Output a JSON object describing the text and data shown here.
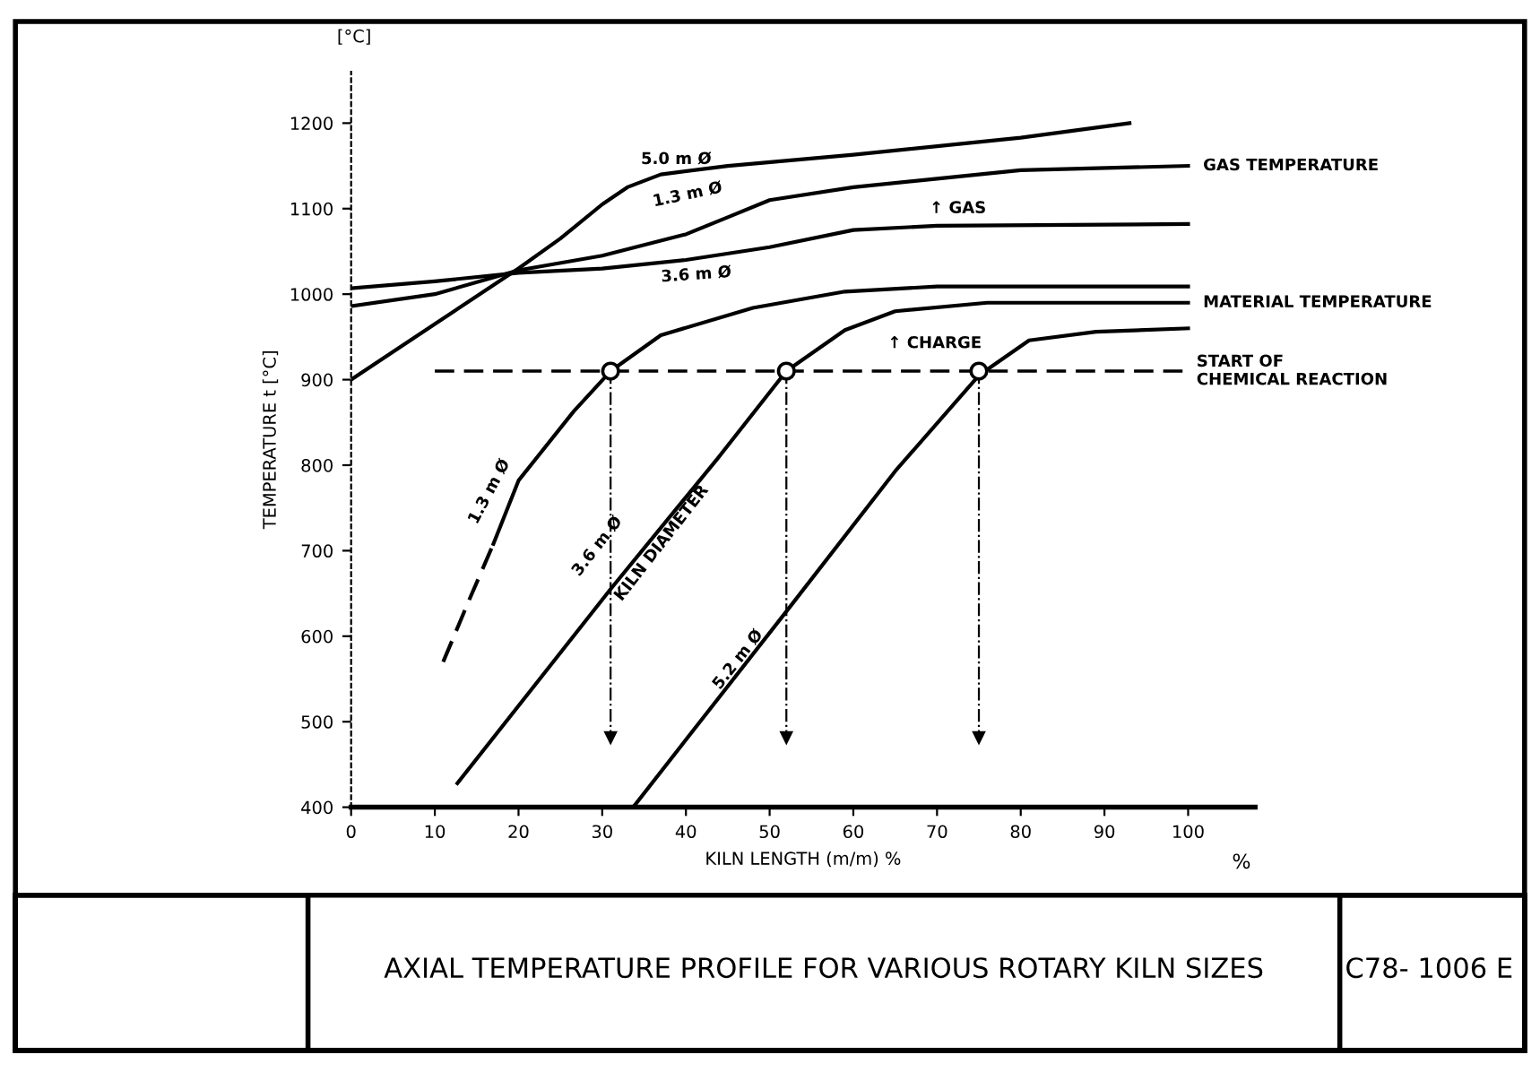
{
  "chart_data": {
    "type": "line",
    "title": "AXIAL TEMPERATURE PROFILE FOR VARIOUS ROTARY KILN SIZES",
    "xlabel": "KILN LENGTH (m/m) %",
    "ylabel": "TEMPERATURE t [°C]",
    "xlim": [
      0,
      108
    ],
    "ylim": [
      400,
      1260
    ],
    "xticks": [
      0,
      10,
      20,
      30,
      40,
      50,
      60,
      70,
      80,
      90,
      100
    ],
    "yticks": [
      400,
      500,
      600,
      700,
      800,
      900,
      1000,
      1100,
      1200
    ],
    "grid": false,
    "marker": "none",
    "line_style": "solid",
    "series": [
      {
        "color": "#000000",
        "x": [
          0,
          10,
          20,
          25,
          30,
          33,
          37,
          45,
          60,
          80,
          93
        ],
        "values": [
          900,
          965,
          1030,
          1065,
          1105,
          1125,
          1140,
          1150,
          1163,
          1183,
          1200
        ]
      },
      {
        "color": "#000000",
        "x": [
          0,
          10,
          20,
          30,
          40,
          45,
          50,
          60,
          70,
          80,
          100
        ],
        "values": [
          986,
          1000,
          1028,
          1045,
          1070,
          1090,
          1110,
          1125,
          1135,
          1145,
          1150
        ]
      },
      {
        "color": "#000000",
        "x": [
          0,
          10,
          20,
          30,
          40,
          50,
          60,
          70,
          100
        ],
        "values": [
          1007,
          1015,
          1025,
          1030,
          1040,
          1055,
          1075,
          1080,
          1082
        ]
      },
      {
        "color": "#000000",
        "line_style": "dashed",
        "x": [
          11,
          14,
          17
        ],
        "values": [
          570,
          640,
          708
        ]
      },
      {
        "color": "#000000",
        "x": [
          17,
          20,
          26.6,
          31,
          37,
          48,
          59,
          70,
          100
        ],
        "values": [
          708,
          782,
          863,
          910,
          952,
          984,
          1003,
          1009,
          1009
        ]
      },
      {
        "color": "#000000",
        "x": [
          12.7,
          31,
          43.8,
          52,
          59,
          65,
          76,
          100
        ],
        "values": [
          428,
          655,
          808,
          910,
          958,
          980,
          990,
          990
        ]
      },
      {
        "color": "#000000",
        "x": [
          33.7,
          52.4,
          65,
          75,
          81,
          89,
          100
        ],
        "values": [
          400,
          634,
          793,
          905,
          946,
          956,
          960
        ]
      },
      {
        "type": "scatter",
        "color": "#000000",
        "marker": "circle",
        "x": [
          31,
          52,
          75
        ],
        "values": [
          910,
          910,
          910
        ]
      }
    ],
    "ref_lines": [
      {
        "axis": "y",
        "value": 910,
        "label": "START OF\nCHEMICAL REACTION",
        "line_style": "dashed",
        "color": "#000000"
      },
      {
        "axis": "x",
        "value": 31,
        "line_style": "dashdot",
        "color": "#000000"
      },
      {
        "axis": "x",
        "value": 52,
        "line_style": "dashdot",
        "color": "#000000"
      },
      {
        "axis": "x",
        "value": 75,
        "line_style": "dashdot",
        "color": "#000000"
      }
    ],
    "annotations": [
      {
        "text": "5.0 m Ø",
        "x": 37,
        "y": 1140
      },
      {
        "text": "1.3 m Ø",
        "x": 45,
        "y": 1090
      },
      {
        "text": "3.6 m Ø",
        "x": 40,
        "y": 1040
      },
      {
        "text": "↑ GAS",
        "x": 70,
        "y": 1135
      },
      {
        "text": "↑ CHARGE",
        "x": 65,
        "y": 980
      },
      {
        "text": "GAS TEMPERATURE",
        "x": 100,
        "y": 1150
      },
      {
        "text": "MATERIAL TEMPERATURE",
        "x": 100,
        "y": 990
      },
      {
        "text": "1.3 m Ø",
        "x": 20,
        "y": 782
      },
      {
        "text": "3.6 m Ø",
        "x": 31,
        "y": 655
      },
      {
        "text": "KILN DIAMETER",
        "x": 31,
        "y": 655
      },
      {
        "text": "5.2 m Ø",
        "x": 52.4,
        "y": 634
      },
      "%",
      "[°C]",
      "C78- 1006 E"
    ]
  }
}
